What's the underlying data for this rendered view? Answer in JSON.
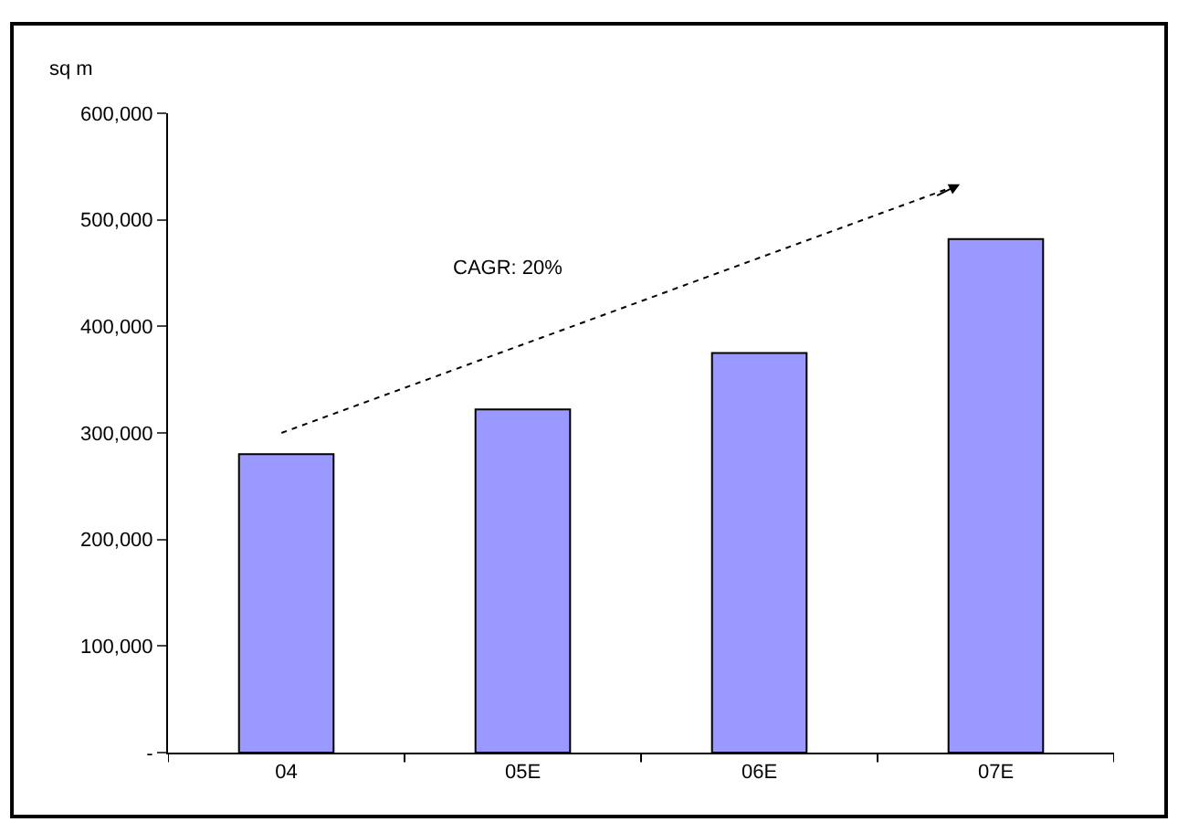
{
  "chart_data": {
    "type": "bar",
    "ylabel": "sq m",
    "categories": [
      "04",
      "05E",
      "06E",
      "07E"
    ],
    "values": [
      280000,
      322000,
      375000,
      482000
    ],
    "color": "#9999ff",
    "ylim": [
      0,
      600000
    ],
    "yticks": [
      {
        "value": 0,
        "label": "-"
      },
      {
        "value": 100000,
        "label": "100,000"
      },
      {
        "value": 200000,
        "label": "200,000"
      },
      {
        "value": 300000,
        "label": "300,000"
      },
      {
        "value": 400000,
        "label": "400,000"
      },
      {
        "value": 500000,
        "label": "500,000"
      },
      {
        "value": 600000,
        "label": "600,000"
      }
    ],
    "annotations": [
      "CAGR: 20%"
    ]
  }
}
